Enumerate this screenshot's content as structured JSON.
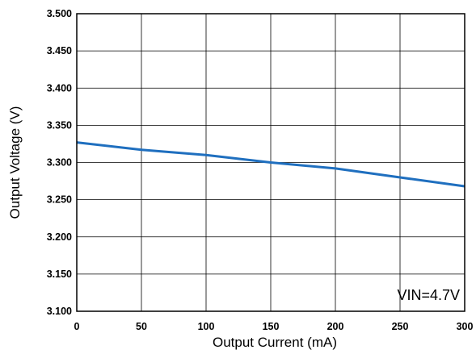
{
  "chart_data": {
    "type": "line",
    "title": "",
    "xlabel": "Output Current  (mA)",
    "ylabel": "Output Voltage (V)",
    "xlim": [
      0,
      300
    ],
    "ylim": [
      3.1,
      3.5
    ],
    "xticks": [
      0,
      50,
      100,
      150,
      200,
      250,
      300
    ],
    "xtick_labels": [
      "0",
      "50",
      "100",
      "150",
      "200",
      "250",
      "300"
    ],
    "yticks": [
      3.1,
      3.15,
      3.2,
      3.25,
      3.3,
      3.35,
      3.4,
      3.45,
      3.5
    ],
    "ytick_labels": [
      "3.100",
      "3.150",
      "3.200",
      "3.250",
      "3.300",
      "3.350",
      "3.400",
      "3.450",
      "3.500"
    ],
    "grid": true,
    "annotation": "VIN=4.7V",
    "series": [
      {
        "color": "#1f6fbf",
        "x": [
          0,
          50,
          100,
          150,
          200,
          250,
          300
        ],
        "y": [
          3.327,
          3.317,
          3.31,
          3.3,
          3.292,
          3.28,
          3.268
        ]
      }
    ]
  }
}
